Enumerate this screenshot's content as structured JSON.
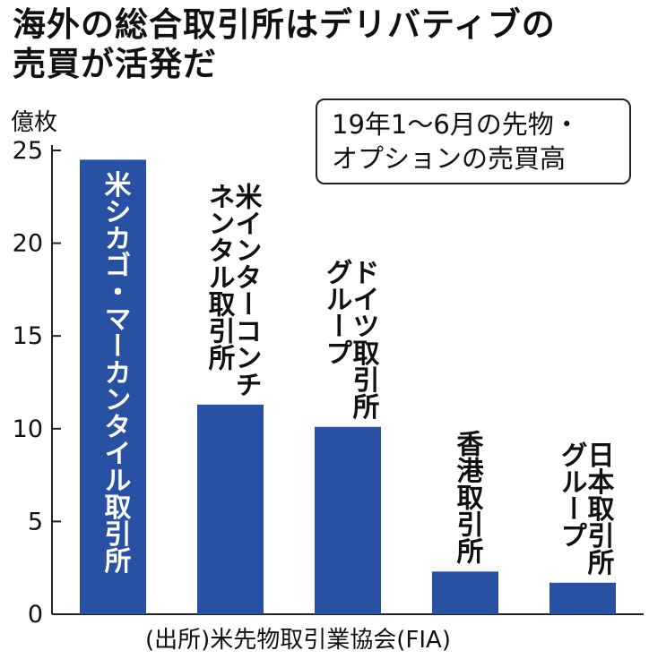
{
  "chart_data": {
    "type": "bar",
    "title_lines": [
      "海外の総合取引所はデリバティブの",
      "売買が活発だ"
    ],
    "ylabel": "億枚",
    "legend_lines": [
      "19年1～6月の先物・",
      "オプションの売買高"
    ],
    "source": "(出所)米先物取引業協会(FIA)",
    "ylim": [
      0,
      25
    ],
    "yticks": [
      0,
      5,
      10,
      15,
      20,
      25
    ],
    "categories": [
      "米シカゴ・マーカンタイル取引所",
      "米インターコンチネンタル取引所",
      "ドイツ取引所グループ",
      "香港取引所",
      "日本取引所グループ"
    ],
    "label_columns": [
      [
        "米シカゴ・マーカンタイル取引所"
      ],
      [
        "米インターコンチ",
        "ネンタル取引所"
      ],
      [
        "ドイツ取引所",
        "グループ"
      ],
      [
        "香港取引所"
      ],
      [
        "日本取引所",
        "グループ"
      ]
    ],
    "values": [
      24.5,
      11.3,
      10.1,
      2.3,
      1.7
    ],
    "colors": {
      "bar": "#2851a3",
      "axis": "#222222",
      "text": "#111111",
      "label_inside": "#ffffff"
    }
  }
}
